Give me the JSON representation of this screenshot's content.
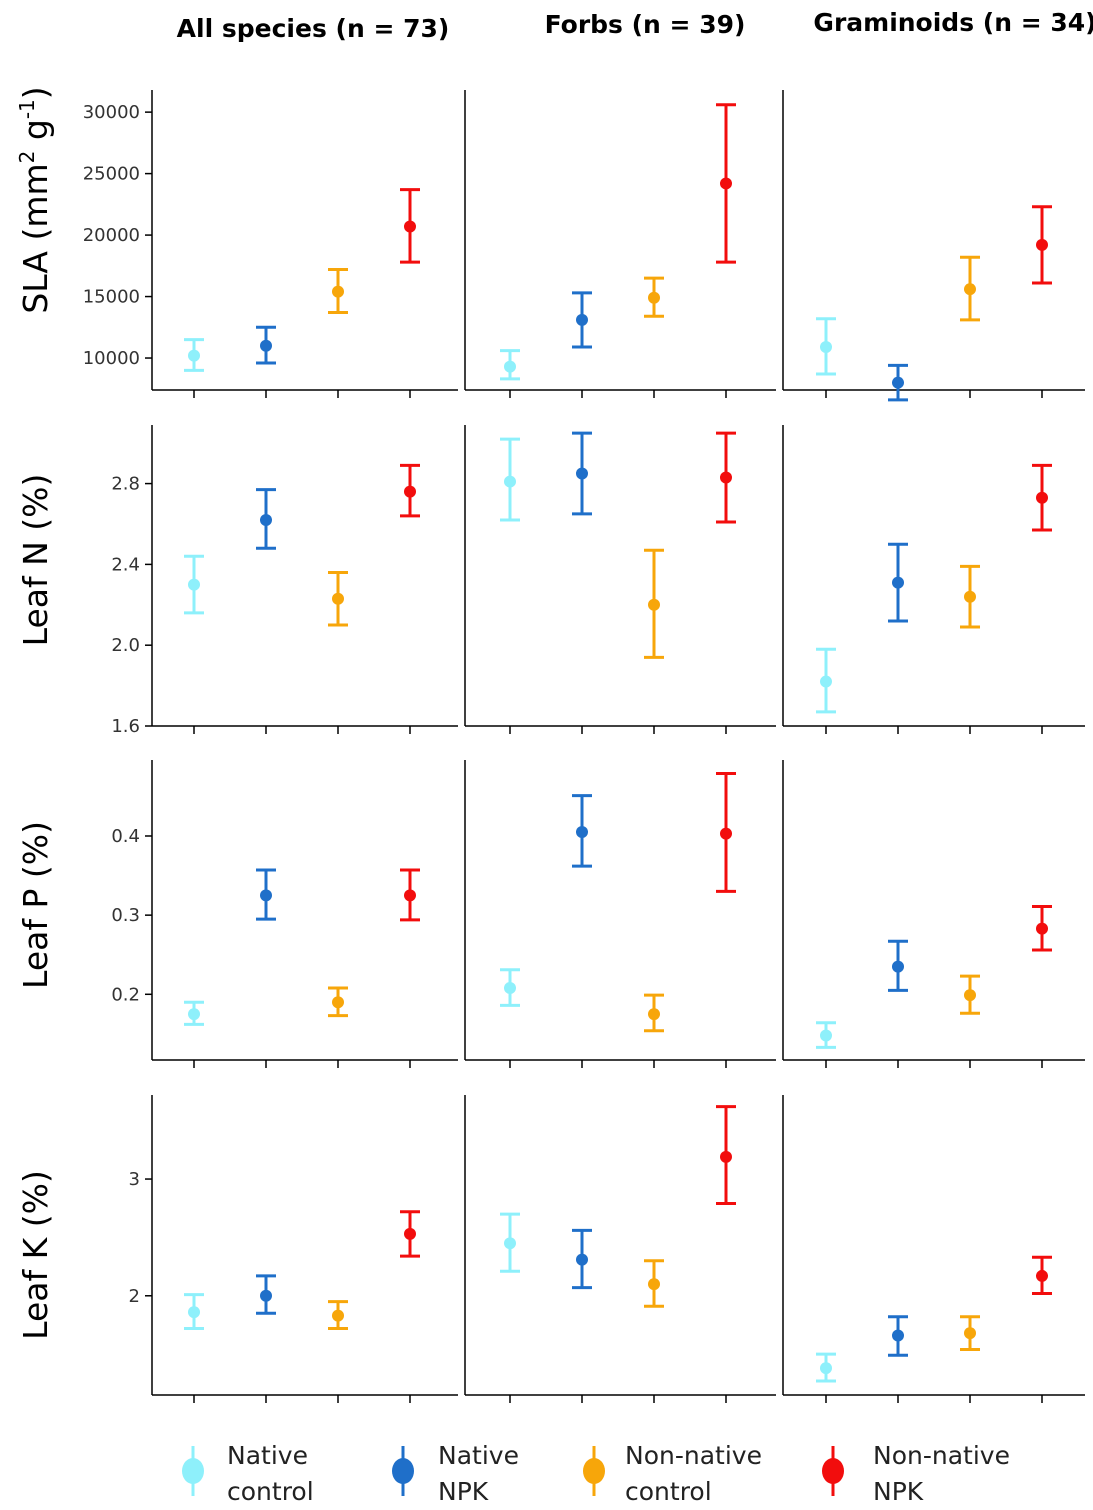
{
  "chart_data": {
    "type": "scatter",
    "description_style": "point-range (mean with error bars), faceted grid",
    "columns": [
      "All species (n = 73)",
      "Forbs (n = 39)",
      "Graminoids (n = 34)"
    ],
    "groups": [
      "Native control",
      "Native NPK",
      "Non-native control",
      "Non-native NPK"
    ],
    "legend": [
      {
        "line1": "Native",
        "line2": "control",
        "color": "#8ef0fb"
      },
      {
        "line1": "Native",
        "line2": "NPK",
        "color": "#1f6fc9"
      },
      {
        "line1": "Non-native",
        "line2": "control",
        "color": "#f7a60a"
      },
      {
        "line1": "Non-native",
        "line2": "NPK",
        "color": "#f20d0d"
      }
    ],
    "legend_position": "bottom",
    "grid": false,
    "rows": [
      {
        "ylabel_main": "SLA (mm",
        "ylabel_sup1": "2",
        "ylabel_mid": " g",
        "ylabel_sup2": "-1",
        "ylabel_end": ")",
        "ylim": [
          7400,
          31800
        ],
        "ticks": [
          10000,
          15000,
          20000,
          25000,
          30000
        ],
        "tick_labels": [
          "10000",
          "15000",
          "20000",
          "25000",
          "30000"
        ],
        "panels": [
          [
            {
              "mean": 10200,
              "low": 9000,
              "high": 11500
            },
            {
              "mean": 11000,
              "low": 9600,
              "high": 12500
            },
            {
              "mean": 15400,
              "low": 13700,
              "high": 17200
            },
            {
              "mean": 20700,
              "low": 17800,
              "high": 23700
            }
          ],
          [
            {
              "mean": 9300,
              "low": 8300,
              "high": 10600
            },
            {
              "mean": 13100,
              "low": 10900,
              "high": 15300
            },
            {
              "mean": 14900,
              "low": 13400,
              "high": 16500
            },
            {
              "mean": 24200,
              "low": 17800,
              "high": 30600
            }
          ],
          [
            {
              "mean": 10900,
              "low": 8700,
              "high": 13200
            },
            {
              "mean": 8000,
              "low": 6600,
              "high": 9400
            },
            {
              "mean": 15600,
              "low": 13100,
              "high": 18200
            },
            {
              "mean": 19200,
              "low": 16100,
              "high": 22300
            }
          ]
        ]
      },
      {
        "ylabel": "Leaf N (%)",
        "ylim": [
          1.6,
          3.09
        ],
        "ticks": [
          1.6,
          2.0,
          2.4,
          2.8
        ],
        "tick_labels": [
          "1.6",
          "2.0",
          "2.4",
          "2.8"
        ],
        "panels": [
          [
            {
              "mean": 2.3,
              "low": 2.16,
              "high": 2.44
            },
            {
              "mean": 2.62,
              "low": 2.48,
              "high": 2.77
            },
            {
              "mean": 2.23,
              "low": 2.1,
              "high": 2.36
            },
            {
              "mean": 2.76,
              "low": 2.64,
              "high": 2.89
            }
          ],
          [
            {
              "mean": 2.81,
              "low": 2.62,
              "high": 3.02
            },
            {
              "mean": 2.85,
              "low": 2.65,
              "high": 3.05
            },
            {
              "mean": 2.2,
              "low": 1.94,
              "high": 2.47
            },
            {
              "mean": 2.83,
              "low": 2.61,
              "high": 3.05
            }
          ],
          [
            {
              "mean": 1.82,
              "low": 1.67,
              "high": 1.98
            },
            {
              "mean": 2.31,
              "low": 2.12,
              "high": 2.5
            },
            {
              "mean": 2.24,
              "low": 2.09,
              "high": 2.39
            },
            {
              "mean": 2.73,
              "low": 2.57,
              "high": 2.89
            }
          ]
        ]
      },
      {
        "ylabel": "Leaf P (%)",
        "ylim": [
          0.117,
          0.496
        ],
        "ticks": [
          0.2,
          0.3,
          0.4
        ],
        "tick_labels": [
          "0.2",
          "0.3",
          "0.4"
        ],
        "panels": [
          [
            {
              "mean": 0.175,
              "low": 0.162,
              "high": 0.19
            },
            {
              "mean": 0.325,
              "low": 0.295,
              "high": 0.357
            },
            {
              "mean": 0.19,
              "low": 0.173,
              "high": 0.208
            },
            {
              "mean": 0.325,
              "low": 0.294,
              "high": 0.357
            }
          ],
          [
            {
              "mean": 0.208,
              "low": 0.186,
              "high": 0.231
            },
            {
              "mean": 0.405,
              "low": 0.362,
              "high": 0.451
            },
            {
              "mean": 0.175,
              "low": 0.154,
              "high": 0.199
            },
            {
              "mean": 0.403,
              "low": 0.33,
              "high": 0.479
            }
          ],
          [
            {
              "mean": 0.148,
              "low": 0.133,
              "high": 0.164
            },
            {
              "mean": 0.235,
              "low": 0.205,
              "high": 0.267
            },
            {
              "mean": 0.199,
              "low": 0.176,
              "high": 0.223
            },
            {
              "mean": 0.283,
              "low": 0.256,
              "high": 0.311
            }
          ]
        ]
      },
      {
        "ylabel": "Leaf K (%)",
        "ylim": [
          1.15,
          3.72
        ],
        "ticks": [
          2,
          3
        ],
        "tick_labels": [
          "2",
          "3"
        ],
        "panels": [
          [
            {
              "mean": 1.86,
              "low": 1.72,
              "high": 2.01
            },
            {
              "mean": 2.0,
              "low": 1.85,
              "high": 2.17
            },
            {
              "mean": 1.83,
              "low": 1.72,
              "high": 1.95
            },
            {
              "mean": 2.53,
              "low": 2.34,
              "high": 2.72
            }
          ],
          [
            {
              "mean": 2.45,
              "low": 2.21,
              "high": 2.7
            },
            {
              "mean": 2.31,
              "low": 2.07,
              "high": 2.56
            },
            {
              "mean": 2.1,
              "low": 1.91,
              "high": 2.3
            },
            {
              "mean": 3.19,
              "low": 2.79,
              "high": 3.62
            }
          ],
          [
            {
              "mean": 1.38,
              "low": 1.27,
              "high": 1.5
            },
            {
              "mean": 1.66,
              "low": 1.49,
              "high": 1.82
            },
            {
              "mean": 1.68,
              "low": 1.54,
              "high": 1.82
            },
            {
              "mean": 2.17,
              "low": 2.02,
              "high": 2.33
            }
          ]
        ]
      }
    ]
  }
}
